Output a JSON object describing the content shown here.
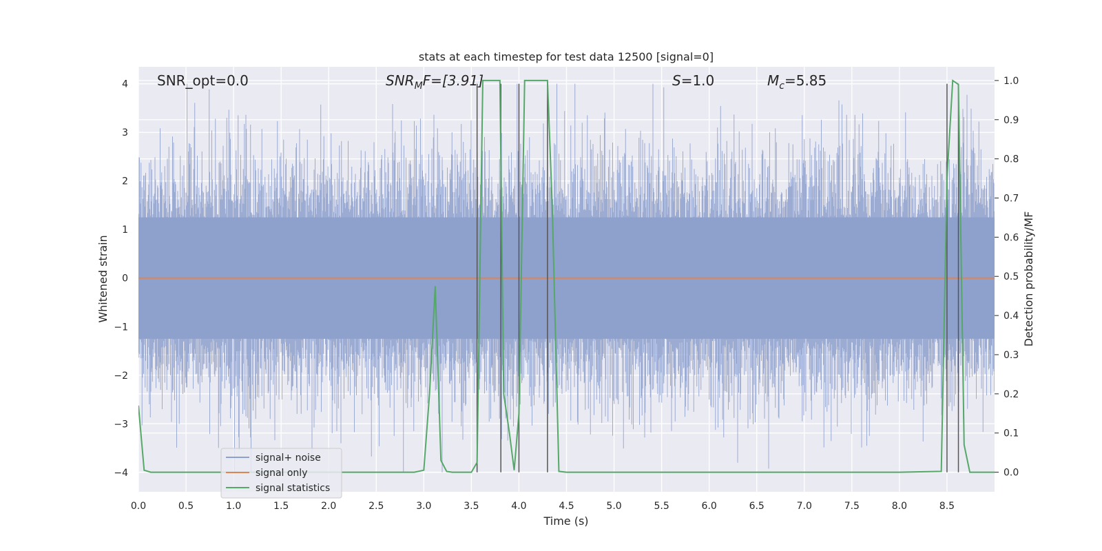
{
  "chart_data": {
    "type": "line",
    "title": "stats at each timestep for test data 12500 [signal=0]",
    "xlabel": "Time (s)",
    "ylabel_left": "Whitened strain",
    "ylabel_right": "Detection probability/MF",
    "xlim": [
      0.0,
      9.0
    ],
    "ylim_left": [
      -4.4,
      4.35
    ],
    "ylim_right": [
      -0.05,
      1.035
    ],
    "xticks": [
      0.0,
      0.5,
      1.0,
      1.5,
      2.0,
      2.5,
      3.0,
      3.5,
      4.0,
      4.5,
      5.0,
      5.5,
      6.0,
      6.5,
      7.0,
      7.5,
      8.0,
      8.5
    ],
    "xtick_labels": [
      "0.0",
      "0.5",
      "1.0",
      "1.5",
      "2.0",
      "2.5",
      "3.0",
      "3.5",
      "4.0",
      "4.5",
      "5.0",
      "5.5",
      "6.0",
      "6.5",
      "7.0",
      "7.5",
      "8.0",
      "8.5"
    ],
    "yticks_left": [
      -4,
      -3,
      -2,
      -1,
      0,
      1,
      2,
      3,
      4
    ],
    "ytick_labels_left": [
      "−4",
      "−3",
      "−2",
      "−1",
      "0",
      "1",
      "2",
      "3",
      "4"
    ],
    "yticks_right": [
      0.0,
      0.1,
      0.2,
      0.3,
      0.4,
      0.5,
      0.6,
      0.7,
      0.8,
      0.9,
      1.0
    ],
    "ytick_labels_right": [
      "0.0",
      "0.1",
      "0.2",
      "0.3",
      "0.4",
      "0.5",
      "0.6",
      "0.7",
      "0.8",
      "0.9",
      "1.0"
    ],
    "grid": true,
    "background_color": "#eaeaf2",
    "annotations": [
      {
        "text": "SNR_opt=0.0",
        "x": 0.19
      },
      {
        "text": "SNR",
        "sub": "M",
        "after": "F=[3.91]",
        "italic_prefix": true,
        "x": 2.6
      },
      {
        "text": "S",
        "after": "=1.0",
        "italic_prefix": true,
        "x": 5.6
      },
      {
        "text": "M",
        "sub": "c",
        "after": "=5.85",
        "italic_prefix": true,
        "x": 6.6
      }
    ],
    "legend": {
      "placement": "lower-left",
      "entries": [
        {
          "label": "signal+ noise",
          "color": "#8ea0cc"
        },
        {
          "label": "signal only",
          "color": "#dd8452"
        },
        {
          "label": "signal statistics",
          "color": "#55a868"
        }
      ]
    },
    "series": [
      {
        "name": "signal+ noise",
        "color": "#8ea0cc",
        "axis": "left",
        "representation": "dense noise envelope",
        "x_range": [
          0.0,
          9.0
        ],
        "typical_peak": 2.0,
        "max_abs": 4.0
      },
      {
        "name": "signal only",
        "color": "#dd8452",
        "axis": "left",
        "x": [
          0.0,
          9.0
        ],
        "y": [
          0.0,
          0.0
        ]
      },
      {
        "name": "signal statistics",
        "color": "#55a868",
        "axis": "right",
        "x": [
          0.0,
          0.06,
          0.13,
          0.5,
          1.0,
          1.5,
          2.0,
          2.5,
          2.9,
          3.0,
          3.06,
          3.12,
          3.18,
          3.24,
          3.3,
          3.5,
          3.56,
          3.62,
          3.7,
          3.8,
          3.84,
          3.9,
          3.95,
          4.0,
          4.06,
          4.2,
          4.3,
          4.35,
          4.42,
          4.5,
          5.0,
          5.5,
          6.0,
          6.5,
          7.0,
          7.5,
          8.0,
          8.44,
          8.5,
          8.56,
          8.62,
          8.68,
          8.74,
          9.0
        ],
        "y": [
          0.17,
          0.005,
          0.0,
          0.0,
          0.0,
          0.0,
          0.0,
          0.0,
          0.0,
          0.005,
          0.2,
          0.475,
          0.03,
          0.002,
          0.0,
          0.0,
          0.025,
          1.0,
          1.0,
          1.0,
          0.2,
          0.1,
          0.005,
          0.15,
          1.0,
          1.0,
          1.0,
          0.68,
          0.002,
          0.0,
          0.0,
          0.0,
          0.0,
          0.0,
          0.0,
          0.0,
          0.0,
          0.002,
          0.75,
          1.0,
          0.99,
          0.07,
          0.0,
          0.0
        ]
      }
    ],
    "vertical_markers": {
      "color": "#555555",
      "x": [
        3.56,
        3.81,
        4.0,
        4.3,
        8.5,
        8.62
      ],
      "y_top": 4.0,
      "y_bottom": -4.0
    }
  }
}
